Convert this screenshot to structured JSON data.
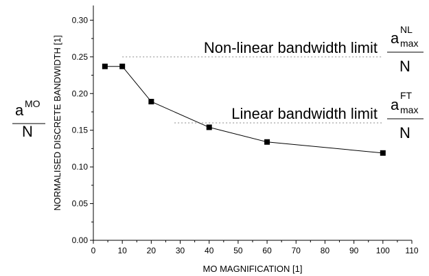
{
  "chart_data": {
    "type": "line",
    "xlabel": "MO MAGNIFICATION [1]",
    "ylabel": "NORMALISED DISCRETE BANDWIDTH [1]",
    "xlim": [
      0,
      110
    ],
    "ylim": [
      0,
      0.32
    ],
    "x_ticks": [
      "0",
      "10",
      "20",
      "30",
      "40",
      "50",
      "60",
      "70",
      "80",
      "90",
      "100",
      "110"
    ],
    "y_ticks": [
      "0.00",
      "0.05",
      "0.10",
      "0.15",
      "0.20",
      "0.25",
      "0.30"
    ],
    "series": [
      {
        "x": [
          4,
          10,
          20,
          40,
          60,
          100
        ],
        "values": [
          0.237,
          0.237,
          0.189,
          0.154,
          0.134,
          0.119
        ],
        "marker": "square",
        "color": "#000000"
      }
    ],
    "reference_lines": [
      {
        "y": 0.25,
        "label": "Non-linear bandwidth limit",
        "style": "dotted",
        "color": "#888888"
      },
      {
        "y": 0.16,
        "label": "Linear bandwidth limit",
        "style": "dotted",
        "color": "#888888"
      }
    ],
    "axis_fraction": {
      "numerator": "a",
      "superscript": "MO",
      "denominator": "N"
    },
    "line_fractions": [
      {
        "numerator": "a",
        "superscript": "NL",
        "subscript": "max",
        "denominator": "N"
      },
      {
        "numerator": "a",
        "superscript": "FT",
        "subscript": "max",
        "denominator": "N"
      }
    ],
    "grid": false,
    "legend": "none"
  }
}
